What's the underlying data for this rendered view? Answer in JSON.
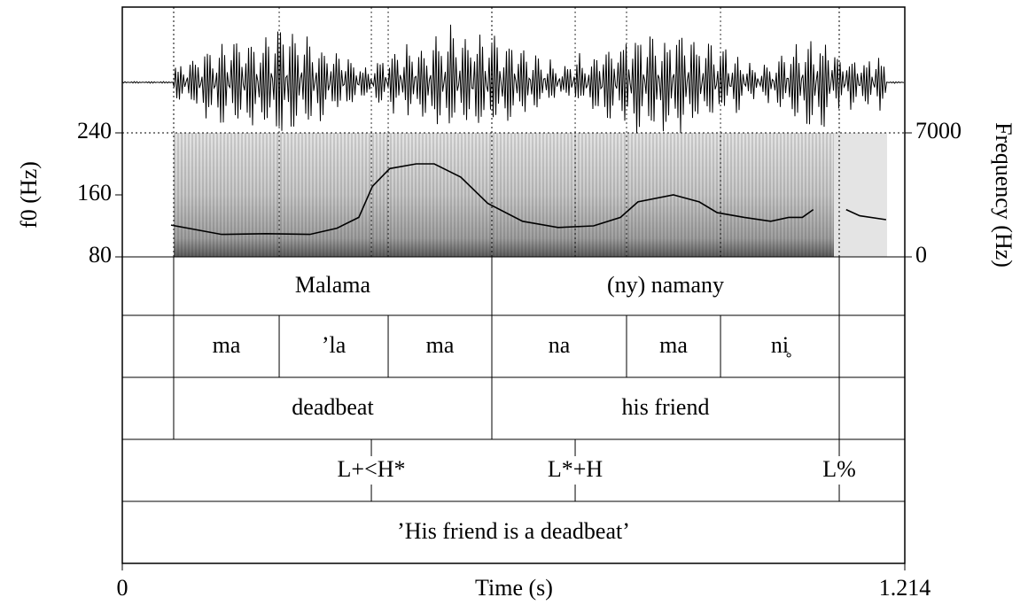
{
  "chart_data": {
    "type": "line",
    "xlabel": "Time (s)",
    "ylabel": "f0 (Hz)",
    "y2label": "Frequency (Hz)",
    "xlim": [
      0,
      1.214
    ],
    "xticks": [
      0,
      1.214
    ],
    "ylim": [
      80,
      240
    ],
    "yticks": [
      80,
      160,
      240
    ],
    "y2lim": [
      0,
      7000
    ],
    "y2ticks": [
      0,
      7000
    ],
    "color": "#000000",
    "x": [
      0.0756,
      0.154,
      0.223,
      0.291,
      0.333,
      0.367,
      0.388,
      0.415,
      0.456,
      0.484,
      0.525,
      0.567,
      0.621,
      0.676,
      0.731,
      0.773,
      0.8,
      0.855,
      0.895,
      0.923,
      0.965,
      1.006,
      1.034,
      1.055,
      1.072,
      1.09,
      1.123,
      1.144,
      1.185
    ],
    "values": [
      121,
      109,
      110,
      109,
      117,
      131,
      171,
      194,
      200,
      200,
      183,
      149,
      126,
      118,
      120,
      131,
      151,
      160,
      151,
      137,
      131,
      126,
      131,
      131,
      141,
      null,
      141,
      133,
      128
    ],
    "tiers": [
      {
        "kind": "interval",
        "intervals": [
          {
            "start": 0.0797,
            "end": 0.5733,
            "text": "Malama"
          },
          {
            "start": 0.5733,
            "end": 1.1123,
            "text": "(ny) namany"
          }
        ]
      },
      {
        "kind": "interval",
        "intervals": [
          {
            "start": 0.0797,
            "end": 0.2434,
            "text": "ma"
          },
          {
            "start": 0.2434,
            "end": 0.4125,
            "text": "’la"
          },
          {
            "start": 0.4125,
            "end": 0.5733,
            "text": "ma"
          },
          {
            "start": 0.5733,
            "end": 0.7823,
            "text": "na"
          },
          {
            "start": 0.7823,
            "end": 0.9281,
            "text": "ma"
          },
          {
            "start": 0.9281,
            "end": 1.1123,
            "text": "ni̥"
          }
        ]
      },
      {
        "kind": "interval",
        "intervals": [
          {
            "start": 0.0797,
            "end": 0.5733,
            "text": "deadbeat"
          },
          {
            "start": 0.5733,
            "end": 1.1123,
            "text": "his friend"
          }
        ]
      },
      {
        "kind": "point",
        "points": [
          {
            "time": 0.3864,
            "text": "L+<H*"
          },
          {
            "time": 0.7026,
            "text": "L*+H"
          },
          {
            "time": 1.1123,
            "text": "L%"
          }
        ]
      },
      {
        "kind": "interval",
        "intervals": [
          {
            "start": 0,
            "end": 1.214,
            "text": "’His friend is a deadbeat’"
          }
        ]
      }
    ]
  }
}
